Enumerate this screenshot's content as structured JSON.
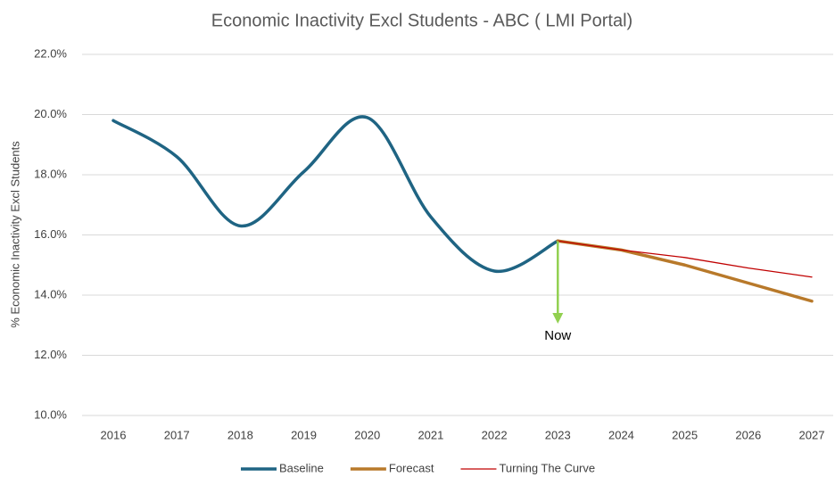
{
  "chart_data": {
    "type": "line",
    "title": "Economic Inactivity Excl Students - ABC ( LMI Portal)",
    "y_label": "% Economic Inactivity Excl Students",
    "categories": [
      "2016",
      "2017",
      "2018",
      "2019",
      "2020",
      "2021",
      "2022",
      "2023",
      "2024",
      "2025",
      "2026",
      "2027"
    ],
    "series": [
      {
        "name": "Baseline",
        "color": "#1f6483",
        "width": 3.5,
        "smooth": true,
        "values": [
          19.8,
          18.6,
          16.3,
          18.1,
          19.9,
          16.6,
          14.8,
          15.8,
          null,
          null,
          null,
          null
        ]
      },
      {
        "name": "Forecast",
        "color": "#b8792a",
        "width": 3.5,
        "smooth": false,
        "values": [
          null,
          null,
          null,
          null,
          null,
          null,
          null,
          15.8,
          15.5,
          15.0,
          14.4,
          13.8
        ]
      },
      {
        "name": "Turning The Curve",
        "color": "#c00000",
        "width": 1.3,
        "smooth": false,
        "values": [
          null,
          null,
          null,
          null,
          null,
          null,
          null,
          15.8,
          15.5,
          15.25,
          14.9,
          14.6
        ]
      }
    ],
    "ylim": [
      10,
      22
    ],
    "yticks": [
      {
        "value": 10,
        "label": "10.0%"
      },
      {
        "value": 12,
        "label": "12.0%"
      },
      {
        "value": 14,
        "label": "14.0%"
      },
      {
        "value": 16,
        "label": "16.0%"
      },
      {
        "value": 18,
        "label": "18.0%"
      },
      {
        "value": 20,
        "label": "20.0%"
      },
      {
        "value": 22,
        "label": "22.0%"
      }
    ],
    "grid": true,
    "legend": "bottom",
    "annotations": [
      {
        "text": "Now",
        "x": "2023",
        "color": "#92d050"
      }
    ]
  }
}
